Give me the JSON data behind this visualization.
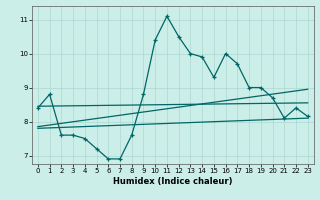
{
  "xlabel": "Humidex (Indice chaleur)",
  "ylabel": "",
  "background_color": "#cceee8",
  "line_color": "#006666",
  "xlim": [
    -0.5,
    23.5
  ],
  "ylim": [
    6.75,
    11.4
  ],
  "yticks": [
    7,
    8,
    9,
    10,
    11
  ],
  "xticks": [
    0,
    1,
    2,
    3,
    4,
    5,
    6,
    7,
    8,
    9,
    10,
    11,
    12,
    13,
    14,
    15,
    16,
    17,
    18,
    19,
    20,
    21,
    22,
    23
  ],
  "main_line": {
    "x": [
      0,
      1,
      2,
      3,
      4,
      5,
      6,
      7,
      8,
      9,
      10,
      11,
      12,
      13,
      14,
      15,
      16,
      17,
      18,
      19,
      20,
      21,
      22,
      23
    ],
    "y": [
      8.4,
      8.8,
      7.6,
      7.6,
      7.5,
      7.2,
      6.9,
      6.9,
      7.6,
      8.8,
      10.4,
      11.1,
      10.5,
      10.0,
      9.9,
      9.3,
      10.0,
      9.7,
      9.0,
      9.0,
      8.7,
      8.1,
      8.4,
      8.15
    ]
  },
  "trend_lines": [
    {
      "x": [
        0,
        23
      ],
      "y": [
        8.45,
        8.55
      ]
    },
    {
      "x": [
        0,
        23
      ],
      "y": [
        7.85,
        8.95
      ]
    },
    {
      "x": [
        0,
        23
      ],
      "y": [
        7.8,
        8.1
      ]
    }
  ],
  "grid_color": "#aad8d0",
  "spine_color": "#555555"
}
